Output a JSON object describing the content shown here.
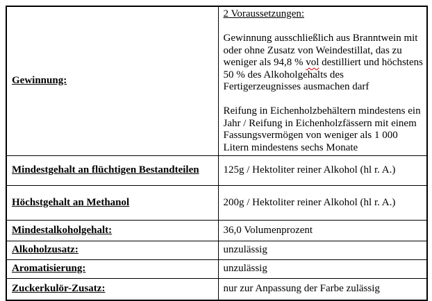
{
  "document": {
    "type": "specification-table",
    "colors": {
      "background": "#ffffff",
      "text": "#000000",
      "border": "#000000",
      "spellcheck_squiggle": "#cc0000"
    },
    "gewinnung": {
      "label": "Gewinnung:",
      "heading": "2 Voraussetzungen:",
      "para1_before": "Gewinnung ausschließlich aus Branntwein mit oder ohne Zusatz von Weindestillat, das zu weniger als 94,8 % ",
      "para1_squiggle_word": "vol",
      "para1_after": " destilliert und höchstens 50 % des Alkoholgehalts des Fertigerzeugnisses ausmachen darf",
      "para2": "Reifung in Eichenholzbehältern mindestens ein Jahr / Reifung in Eichenholzfässern mit einem Fassungsvermögen von weniger als 1 000 Litern mindestens sechs Monate"
    },
    "rows": [
      {
        "label": "Mindestgehalt an flüchtigen Bestandteilen",
        "value": "125g / Hektoliter reiner Alkohol (hl r. A.)"
      },
      {
        "label": "Höchstgehalt an Methanol",
        "value": "200g / Hektoliter reiner Alkohol (hl r. A.)"
      },
      {
        "label": "Mindestalkoholgehalt:",
        "value": "36,0 Volumenprozent"
      },
      {
        "label": "Alkoholzusatz:",
        "value": "unzulässig"
      },
      {
        "label": "Aromatisierung:",
        "value": "unzulässig"
      },
      {
        "label": "Zuckerkulör-Zusatz:",
        "value": "nur zur Anpassung der Farbe zulässig"
      }
    ]
  }
}
